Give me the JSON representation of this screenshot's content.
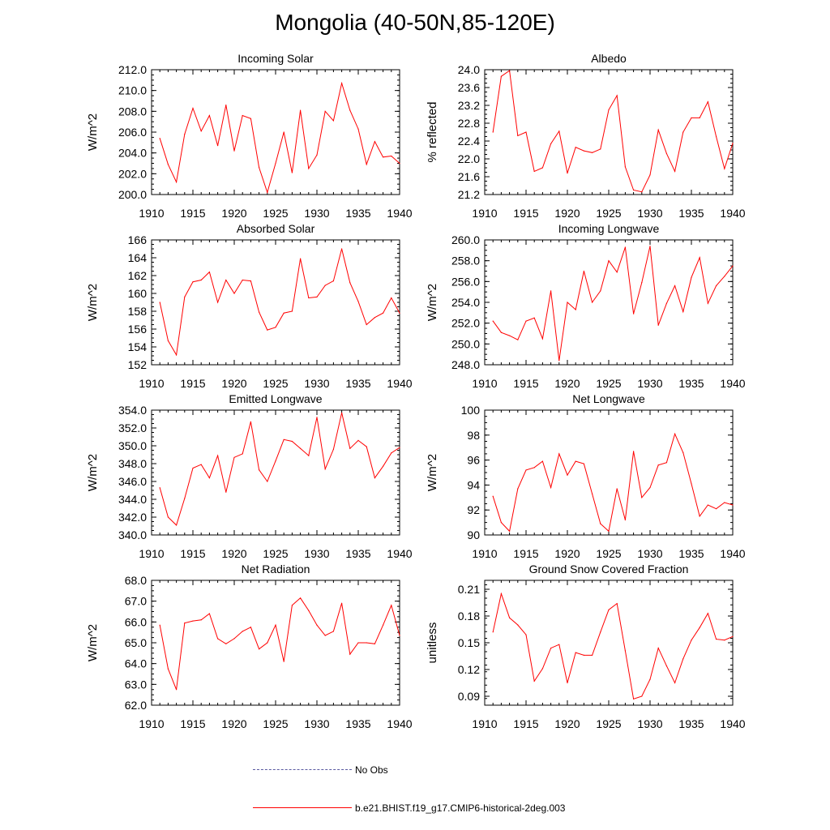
{
  "title": "Mongolia (40-50N,85-120E)",
  "legend": {
    "no_obs": "No Obs",
    "model": "b.e21.BHIST.f19_g17.CMIP6-historical-2deg.003"
  },
  "colors": {
    "series": "#ff0000",
    "no_obs": "#5a5aa0",
    "axis": "#000000"
  },
  "chart_data": [
    {
      "type": "line",
      "title": "Incoming Solar",
      "ylabel": "W/m^2",
      "xlim": [
        1910,
        1940
      ],
      "ylim": [
        200,
        212
      ],
      "xticks": [
        1910,
        1915,
        1920,
        1925,
        1930,
        1935,
        1940
      ],
      "yticks": [
        "200.0",
        "202.0",
        "204.0",
        "206.0",
        "208.0",
        "210.0",
        "212.0"
      ],
      "x": [
        1911,
        1912,
        1913,
        1914,
        1915,
        1916,
        1917,
        1918,
        1919,
        1920,
        1921,
        1922,
        1923,
        1924,
        1925,
        1926,
        1927,
        1928,
        1929,
        1930,
        1931,
        1932,
        1933,
        1934,
        1935,
        1936,
        1937,
        1938,
        1939,
        1940
      ],
      "values": [
        205.4,
        202.9,
        201.2,
        205.8,
        208.3,
        206.1,
        207.6,
        204.7,
        208.6,
        204.2,
        207.6,
        207.3,
        202.6,
        200.2,
        203.0,
        206.0,
        202.1,
        208.1,
        202.5,
        203.8,
        208.0,
        207.1,
        210.7,
        208.1,
        206.3,
        202.9,
        205.1,
        203.6,
        203.7,
        203.0
      ]
    },
    {
      "type": "line",
      "title": "Albedo",
      "ylabel": "% reflected",
      "xlim": [
        1910,
        1940
      ],
      "ylim": [
        21.2,
        24.0
      ],
      "xticks": [
        1910,
        1915,
        1920,
        1925,
        1930,
        1935,
        1940
      ],
      "yticks": [
        "21.2",
        "21.6",
        "22.0",
        "22.4",
        "22.8",
        "23.2",
        "23.6",
        "24.0"
      ],
      "x": [
        1911,
        1912,
        1913,
        1914,
        1915,
        1916,
        1917,
        1918,
        1919,
        1920,
        1921,
        1922,
        1923,
        1924,
        1925,
        1926,
        1927,
        1928,
        1929,
        1930,
        1931,
        1932,
        1933,
        1934,
        1935,
        1936,
        1937,
        1938,
        1939,
        1940
      ],
      "values": [
        22.6,
        23.85,
        23.98,
        22.52,
        22.6,
        21.72,
        21.8,
        22.34,
        22.62,
        21.68,
        22.26,
        22.18,
        22.14,
        22.22,
        23.1,
        23.42,
        21.82,
        21.3,
        21.26,
        21.64,
        22.65,
        22.12,
        21.72,
        22.6,
        22.92,
        22.92,
        23.28,
        22.5,
        21.78,
        22.35
      ]
    },
    {
      "type": "line",
      "title": "Absorbed Solar",
      "ylabel": "W/m^2",
      "xlim": [
        1910,
        1940
      ],
      "ylim": [
        152,
        166
      ],
      "xticks": [
        1910,
        1915,
        1920,
        1925,
        1930,
        1935,
        1940
      ],
      "yticks": [
        "152",
        "154",
        "156",
        "158",
        "160",
        "162",
        "164",
        "166"
      ],
      "x": [
        1911,
        1912,
        1913,
        1914,
        1915,
        1916,
        1917,
        1918,
        1919,
        1920,
        1921,
        1922,
        1923,
        1924,
        1925,
        1926,
        1927,
        1928,
        1929,
        1930,
        1931,
        1932,
        1933,
        1934,
        1935,
        1936,
        1937,
        1938,
        1939,
        1940
      ],
      "values": [
        159.0,
        154.7,
        153.1,
        159.6,
        161.3,
        161.5,
        162.4,
        159.0,
        161.5,
        160.0,
        161.5,
        161.4,
        157.9,
        155.9,
        156.2,
        157.8,
        158.0,
        163.9,
        159.5,
        159.6,
        160.9,
        161.4,
        165.0,
        161.2,
        159.1,
        156.5,
        157.3,
        157.8,
        159.5,
        157.8
      ]
    },
    {
      "type": "line",
      "title": "Incoming Longwave",
      "ylabel": "W/m^2",
      "xlim": [
        1910,
        1940
      ],
      "ylim": [
        248,
        260
      ],
      "xticks": [
        1910,
        1915,
        1920,
        1925,
        1930,
        1935,
        1940
      ],
      "yticks": [
        "248.0",
        "250.0",
        "252.0",
        "254.0",
        "256.0",
        "258.0",
        "260.0"
      ],
      "x": [
        1911,
        1912,
        1913,
        1914,
        1915,
        1916,
        1917,
        1918,
        1919,
        1920,
        1921,
        1922,
        1923,
        1924,
        1925,
        1926,
        1927,
        1928,
        1929,
        1930,
        1931,
        1932,
        1933,
        1934,
        1935,
        1936,
        1937,
        1938,
        1939,
        1940
      ],
      "values": [
        252.2,
        251.1,
        250.8,
        250.4,
        252.2,
        252.5,
        250.5,
        255.1,
        248.4,
        254.0,
        253.3,
        257.0,
        254.0,
        255.1,
        258.0,
        256.9,
        259.3,
        252.9,
        255.9,
        259.4,
        251.8,
        253.9,
        255.6,
        253.1,
        256.4,
        258.3,
        253.9,
        255.6,
        256.5,
        257.5
      ]
    },
    {
      "type": "line",
      "title": "Emitted Longwave",
      "ylabel": "W/m^2",
      "xlim": [
        1910,
        1940
      ],
      "ylim": [
        340,
        354
      ],
      "xticks": [
        1910,
        1915,
        1920,
        1925,
        1930,
        1935,
        1940
      ],
      "yticks": [
        "340.0",
        "342.0",
        "344.0",
        "346.0",
        "348.0",
        "350.0",
        "352.0",
        "354.0"
      ],
      "x": [
        1911,
        1912,
        1913,
        1914,
        1915,
        1916,
        1917,
        1918,
        1919,
        1920,
        1921,
        1922,
        1923,
        1924,
        1925,
        1926,
        1927,
        1928,
        1929,
        1930,
        1931,
        1932,
        1933,
        1934,
        1935,
        1936,
        1937,
        1938,
        1939,
        1940
      ],
      "values": [
        345.3,
        342.0,
        341.1,
        344.1,
        347.5,
        347.9,
        346.4,
        348.9,
        344.8,
        348.7,
        349.1,
        352.7,
        347.3,
        346.0,
        348.3,
        350.7,
        350.5,
        349.7,
        348.9,
        353.2,
        347.4,
        349.6,
        353.7,
        349.7,
        350.6,
        349.9,
        346.4,
        347.7,
        349.2,
        349.8
      ]
    },
    {
      "type": "line",
      "title": "Net Longwave",
      "ylabel": "W/m^2",
      "xlim": [
        1910,
        1940
      ],
      "ylim": [
        90,
        100
      ],
      "xticks": [
        1910,
        1915,
        1920,
        1925,
        1930,
        1935,
        1940
      ],
      "yticks": [
        "90",
        "92",
        "94",
        "96",
        "98",
        "100"
      ],
      "x": [
        1911,
        1912,
        1913,
        1914,
        1915,
        1916,
        1917,
        1918,
        1919,
        1920,
        1921,
        1922,
        1923,
        1924,
        1925,
        1926,
        1927,
        1928,
        1929,
        1930,
        1931,
        1932,
        1933,
        1934,
        1935,
        1936,
        1937,
        1938,
        1939,
        1940
      ],
      "values": [
        93.1,
        91.0,
        90.3,
        93.7,
        95.2,
        95.4,
        95.9,
        93.8,
        96.5,
        94.8,
        95.9,
        95.7,
        93.3,
        90.9,
        90.3,
        93.7,
        91.2,
        96.7,
        93.0,
        93.8,
        95.6,
        95.8,
        98.1,
        96.6,
        94.1,
        91.5,
        92.4,
        92.1,
        92.6,
        92.4
      ]
    },
    {
      "type": "line",
      "title": "Net Radiation",
      "ylabel": "W/m^2",
      "xlim": [
        1910,
        1940
      ],
      "ylim": [
        62,
        68
      ],
      "xticks": [
        1910,
        1915,
        1920,
        1925,
        1930,
        1935,
        1940
      ],
      "yticks": [
        "62.0",
        "63.0",
        "64.0",
        "65.0",
        "66.0",
        "67.0",
        "68.0"
      ],
      "x": [
        1911,
        1912,
        1913,
        1914,
        1915,
        1916,
        1917,
        1918,
        1919,
        1920,
        1921,
        1922,
        1923,
        1924,
        1925,
        1926,
        1927,
        1928,
        1929,
        1930,
        1931,
        1932,
        1933,
        1934,
        1935,
        1936,
        1937,
        1938,
        1939,
        1940
      ],
      "values": [
        65.85,
        63.75,
        62.75,
        65.95,
        66.05,
        66.1,
        66.4,
        65.2,
        64.95,
        65.2,
        65.55,
        65.75,
        64.7,
        65.0,
        65.85,
        64.1,
        66.8,
        67.15,
        66.55,
        65.85,
        65.35,
        65.55,
        66.9,
        64.45,
        65.0,
        65.0,
        64.95,
        65.85,
        66.8,
        65.35
      ]
    },
    {
      "type": "line",
      "title": "Ground Snow Covered Fraction",
      "ylabel": "unitless",
      "xlim": [
        1910,
        1940
      ],
      "ylim": [
        0.08,
        0.22
      ],
      "xticks": [
        1910,
        1915,
        1920,
        1925,
        1930,
        1935,
        1940
      ],
      "yticks": [
        "0.09",
        "0.12",
        "0.15",
        "0.18",
        "0.21"
      ],
      "ytick_values": [
        0.09,
        0.12,
        0.15,
        0.18,
        0.21
      ],
      "x": [
        1911,
        1912,
        1913,
        1914,
        1915,
        1916,
        1917,
        1918,
        1919,
        1920,
        1921,
        1922,
        1923,
        1924,
        1925,
        1926,
        1927,
        1928,
        1929,
        1930,
        1931,
        1932,
        1933,
        1934,
        1935,
        1936,
        1937,
        1938,
        1939,
        1940
      ],
      "values": [
        0.162,
        0.205,
        0.178,
        0.17,
        0.159,
        0.107,
        0.121,
        0.144,
        0.148,
        0.105,
        0.139,
        0.136,
        0.136,
        0.162,
        0.187,
        0.194,
        0.141,
        0.087,
        0.09,
        0.109,
        0.144,
        0.124,
        0.105,
        0.132,
        0.153,
        0.167,
        0.183,
        0.154,
        0.153,
        0.157
      ]
    }
  ]
}
